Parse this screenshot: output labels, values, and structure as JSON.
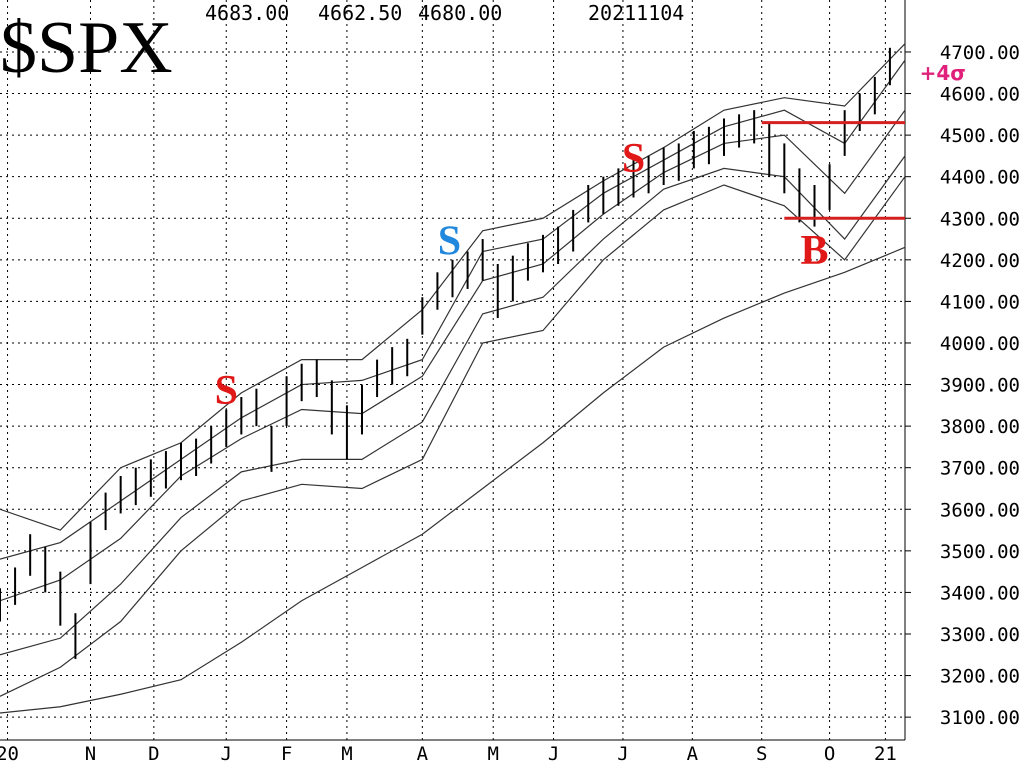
{
  "chart_data": {
    "type": "ohlc",
    "title": "$SPX",
    "header": [
      "4683.00",
      "4662.50",
      "4680.00",
      "20211104"
    ],
    "color": "#000000",
    "band_color": "#333333",
    "grid": true,
    "xlim": [
      0,
      60
    ],
    "ylim": [
      3045,
      4825
    ],
    "xticks": [
      {
        "value": 0.5,
        "label": "20"
      },
      {
        "value": 6,
        "label": "N"
      },
      {
        "value": 10.2,
        "label": "D"
      },
      {
        "value": 15,
        "label": "J"
      },
      {
        "value": 19,
        "label": "F"
      },
      {
        "value": 23,
        "label": "M"
      },
      {
        "value": 28,
        "label": "A"
      },
      {
        "value": 32.7,
        "label": "M"
      },
      {
        "value": 36.7,
        "label": "J"
      },
      {
        "value": 41.3,
        "label": "J"
      },
      {
        "value": 45.9,
        "label": "A"
      },
      {
        "value": 50.5,
        "label": "S"
      },
      {
        "value": 55,
        "label": "O"
      },
      {
        "value": 58.7,
        "label": "21"
      }
    ],
    "yticks": [
      {
        "value": 3100,
        "label": "3100.00"
      },
      {
        "value": 3200,
        "label": "3200.00"
      },
      {
        "value": 3300,
        "label": "3300.00"
      },
      {
        "value": 3400,
        "label": "3400.00"
      },
      {
        "value": 3500,
        "label": "3500.00"
      },
      {
        "value": 3600,
        "label": "3600.00"
      },
      {
        "value": 3700,
        "label": "3700.00"
      },
      {
        "value": 3800,
        "label": "3800.00"
      },
      {
        "value": 3900,
        "label": "3900.00"
      },
      {
        "value": 4000,
        "label": "4000.00"
      },
      {
        "value": 4100,
        "label": "4100.00"
      },
      {
        "value": 4200,
        "label": "4200.00"
      },
      {
        "value": 4300,
        "label": "4300.00"
      },
      {
        "value": 4400,
        "label": "4400.00"
      },
      {
        "value": 4500,
        "label": "4500.00"
      },
      {
        "value": 4600,
        "label": "4600.00"
      },
      {
        "value": 4700,
        "label": "4700.00"
      }
    ],
    "x": [
      0,
      1,
      2,
      3,
      4,
      5,
      6,
      7,
      8,
      9,
      10,
      11,
      12,
      13,
      14,
      15,
      16,
      17,
      18,
      19,
      20,
      21,
      22,
      23,
      24,
      25,
      26,
      27,
      28,
      29,
      30,
      31,
      32,
      33,
      34,
      35,
      36,
      37,
      38,
      39,
      40,
      41,
      42,
      43,
      44,
      45,
      46,
      47,
      48,
      49,
      50,
      51,
      52,
      53,
      54,
      55,
      56,
      57,
      58,
      59
    ],
    "high": [
      3410,
      3460,
      3540,
      3510,
      3450,
      3350,
      3570,
      3640,
      3680,
      3700,
      3720,
      3740,
      3760,
      3770,
      3800,
      3840,
      3870,
      3890,
      3800,
      3920,
      3950,
      3960,
      3910,
      3850,
      3900,
      3960,
      3990,
      4010,
      4110,
      4170,
      4200,
      4220,
      4250,
      4190,
      4210,
      4240,
      4260,
      4280,
      4320,
      4380,
      4400,
      4420,
      4440,
      4450,
      4470,
      4480,
      4510,
      4520,
      4540,
      4550,
      4560,
      4530,
      4480,
      4420,
      4380,
      4430,
      4560,
      4600,
      4640,
      4710
    ],
    "low": [
      3330,
      3370,
      3440,
      3400,
      3320,
      3240,
      3420,
      3550,
      3590,
      3610,
      3630,
      3650,
      3670,
      3680,
      3710,
      3750,
      3780,
      3800,
      3690,
      3800,
      3860,
      3870,
      3780,
      3720,
      3780,
      3870,
      3900,
      3920,
      4020,
      4080,
      4110,
      4130,
      4150,
      4060,
      4100,
      4150,
      4170,
      4190,
      4220,
      4290,
      4310,
      4330,
      4350,
      4360,
      4380,
      4390,
      4420,
      4430,
      4450,
      4470,
      4480,
      4400,
      4360,
      4290,
      4280,
      4320,
      4450,
      4510,
      4550,
      4620
    ],
    "bands": {
      "x": [
        0,
        4,
        8,
        12,
        16,
        20,
        24,
        28,
        32,
        36,
        40,
        44,
        48,
        52,
        56,
        60
      ],
      "upper4": [
        3600,
        3550,
        3700,
        3760,
        3880,
        3960,
        3960,
        4080,
        4270,
        4300,
        4390,
        4470,
        4560,
        4590,
        4570,
        4720
      ],
      "upper2": [
        3480,
        3520,
        3620,
        3720,
        3820,
        3900,
        3910,
        3960,
        4220,
        4250,
        4360,
        4440,
        4520,
        4560,
        4480,
        4680
      ],
      "mid": [
        3380,
        3430,
        3530,
        3680,
        3770,
        3840,
        3830,
        3920,
        4150,
        4190,
        4310,
        4410,
        4480,
        4500,
        4360,
        4560
      ],
      "lower2": [
        3250,
        3290,
        3420,
        3580,
        3690,
        3720,
        3720,
        3810,
        4070,
        4110,
        4250,
        4370,
        4420,
        4400,
        4250,
        4450
      ],
      "lower4": [
        3150,
        3220,
        3330,
        3500,
        3620,
        3660,
        3650,
        3720,
        4000,
        4030,
        4200,
        4320,
        4380,
        4330,
        4200,
        4400
      ],
      "ma200": [
        3110,
        3125,
        3155,
        3190,
        3280,
        3380,
        3460,
        3540,
        3650,
        3760,
        3880,
        3990,
        4060,
        4120,
        4170,
        4230
      ]
    },
    "levels": [
      {
        "value": 4530,
        "x": [
          50.5,
          60
        ],
        "color": "#d42020"
      },
      {
        "value": 4300,
        "x": [
          52,
          60
        ],
        "color": "#d42020"
      }
    ],
    "annotations": [
      {
        "text": "S",
        "x": 15,
        "y": 3887,
        "color": "#e01818"
      },
      {
        "text": "S",
        "x": 29.8,
        "y": 4247,
        "color": "#2288dd"
      },
      {
        "text": "S",
        "x": 42,
        "y": 4445,
        "color": "#e01818"
      },
      {
        "text": "B",
        "x": 54,
        "y": 4224,
        "color": "#e01818"
      },
      {
        "text": "+4σ",
        "x": 62.5,
        "y": 4650,
        "color": "#e0207a"
      }
    ]
  }
}
